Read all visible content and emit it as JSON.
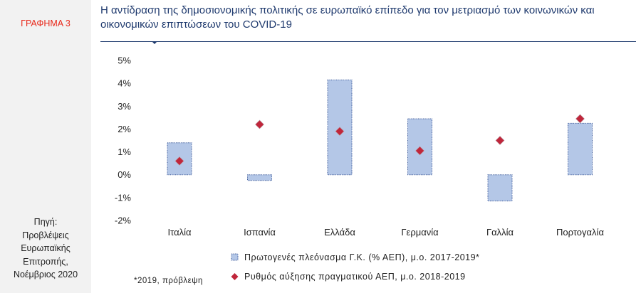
{
  "figure_label": "ΓΡΑΦΗΜΑ 3",
  "source": [
    "Πηγή:",
    "Προβλέψεις",
    "Ευρωπαϊκής",
    "Επιτροπής,",
    "Νοέμβριος 2020"
  ],
  "chart_data": {
    "type": "bar",
    "title": "Η αντίδραση της δημοσιονομικής πολιτικής σε ευρωπαϊκό επίπεδο για τον μετριασμό των κοινωνικών και οικονομικών επιπτώσεων του COVID-19",
    "categories": [
      "Ιταλία",
      "Ισπανία",
      "Ελλάδα",
      "Γερμανία",
      "Γαλλία",
      "Πορτογαλία"
    ],
    "series": [
      {
        "name": "Πρωτογενές πλεόνασμα Γ.Κ. (% ΑΕΠ), μ.ο. 2017-2019*",
        "kind": "bar",
        "color": "#b4c7e7",
        "values": [
          1.4,
          -0.25,
          4.15,
          2.45,
          -1.15,
          2.25
        ]
      },
      {
        "name": "Ρυθμός αύξησης πραγματικού ΑΕΠ, μ.ο. 2018-2019",
        "kind": "marker",
        "color": "#c0263b",
        "values": [
          0.6,
          2.2,
          1.9,
          1.05,
          1.5,
          2.45
        ]
      }
    ],
    "ylim": [
      -2,
      5
    ],
    "yticks": [
      "-2%",
      "-1%",
      "0%",
      "1%",
      "2%",
      "3%",
      "4%",
      "5%"
    ],
    "ytick_values": [
      -2,
      -1,
      0,
      1,
      2,
      3,
      4,
      5
    ],
    "footnote": "*2019, πρόβλεψη",
    "legend_position": "bottom-center"
  }
}
